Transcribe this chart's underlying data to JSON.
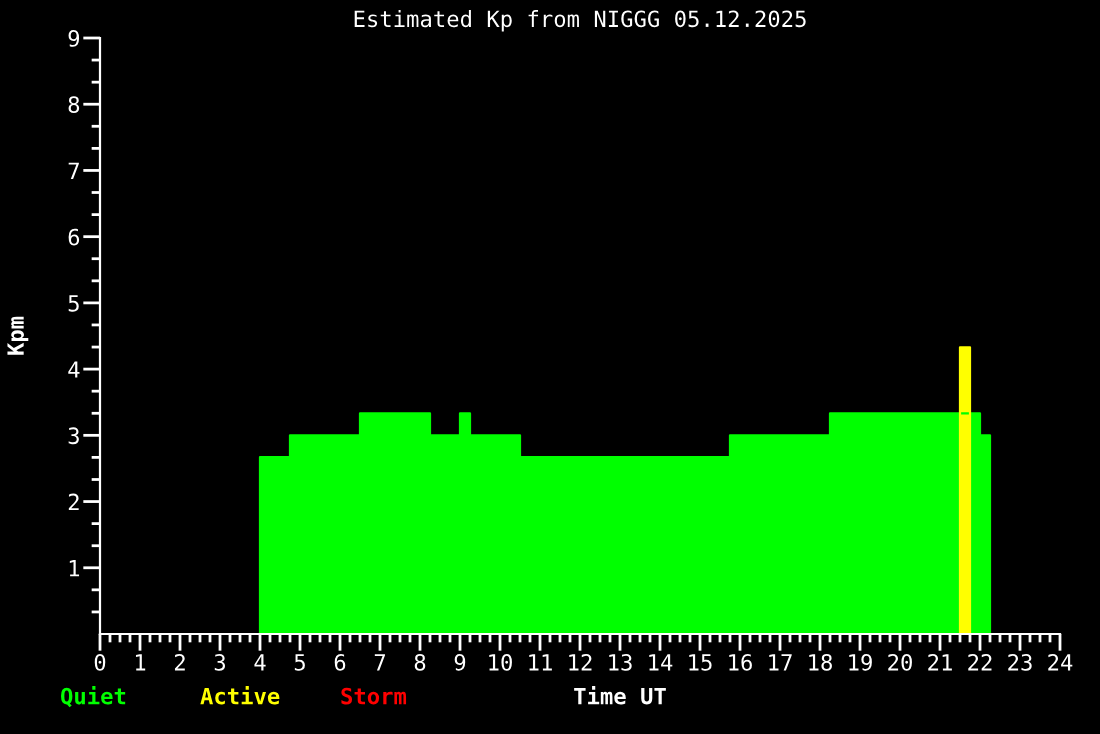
{
  "chart_data": {
    "type": "area",
    "title": "Estimated Kp from NIGGG 05.12.2025",
    "xlabel": "Time UT",
    "ylabel": "Kpm",
    "series": [
      {
        "name": "Quiet",
        "color": "#00ff00",
        "x": [
          4,
          4,
          4.75,
          4.75,
          6.5,
          6.5,
          8.25,
          8.25,
          9,
          9,
          9.25,
          9.25,
          10.5,
          10.5,
          15.75,
          15.75,
          18.25,
          18.25,
          22,
          22,
          22.25,
          22.25
        ],
        "values": [
          0,
          2.67,
          2.67,
          3,
          3,
          3.33,
          3.33,
          3,
          3,
          3.33,
          3.33,
          3,
          3,
          2.67,
          2.67,
          3,
          3,
          3.33,
          3.33,
          3,
          3,
          0
        ]
      },
      {
        "name": "Active",
        "color": "#ffff00",
        "x": [
          21.5,
          21.5,
          21.75,
          21.75
        ],
        "values": [
          0,
          4.33,
          4.33,
          0
        ]
      },
      {
        "name": "Storm",
        "color": "#ff0000"
      }
    ],
    "xlim": [
      0,
      24
    ],
    "ylim": [
      0,
      9
    ],
    "xticks": [
      0,
      {
        "value": 0.25,
        "label": null
      },
      {
        "value": 0.5,
        "label": null
      },
      {
        "value": 0.75,
        "label": null
      },
      1,
      {
        "value": 1.25,
        "label": null
      },
      {
        "value": 1.5,
        "label": null
      },
      {
        "value": 1.75,
        "label": null
      },
      2,
      {
        "value": 2.25,
        "label": null
      },
      {
        "value": 2.5,
        "label": null
      },
      {
        "value": 2.75,
        "label": null
      },
      3,
      {
        "value": 3.25,
        "label": null
      },
      {
        "value": 3.5,
        "label": null
      },
      {
        "value": 3.75,
        "label": null
      },
      4,
      {
        "value": 4.25,
        "label": null
      },
      {
        "value": 4.5,
        "label": null
      },
      {
        "value": 4.75,
        "label": null
      },
      5,
      {
        "value": 5.25,
        "label": null
      },
      {
        "value": 5.5,
        "label": null
      },
      {
        "value": 5.75,
        "label": null
      },
      6,
      {
        "value": 6.25,
        "label": null
      },
      {
        "value": 6.5,
        "label": null
      },
      {
        "value": 6.75,
        "label": null
      },
      7,
      {
        "value": 7.25,
        "label": null
      },
      {
        "value": 7.5,
        "label": null
      },
      {
        "value": 7.75,
        "label": null
      },
      8,
      {
        "value": 8.25,
        "label": null
      },
      {
        "value": 8.5,
        "label": null
      },
      {
        "value": 8.75,
        "label": null
      },
      9,
      {
        "value": 9.25,
        "label": null
      },
      {
        "value": 9.5,
        "label": null
      },
      {
        "value": 9.75,
        "label": null
      },
      10,
      {
        "value": 10.25,
        "label": null
      },
      {
        "value": 10.5,
        "label": null
      },
      {
        "value": 10.75,
        "label": null
      },
      11,
      {
        "value": 11.25,
        "label": null
      },
      {
        "value": 11.5,
        "label": null
      },
      {
        "value": 11.75,
        "label": null
      },
      12,
      {
        "value": 12.25,
        "label": null
      },
      {
        "value": 12.5,
        "label": null
      },
      {
        "value": 12.75,
        "label": null
      },
      13,
      {
        "value": 13.25,
        "label": null
      },
      {
        "value": 13.5,
        "label": null
      },
      {
        "value": 13.75,
        "label": null
      },
      14,
      {
        "value": 14.25,
        "label": null
      },
      {
        "value": 14.5,
        "label": null
      },
      {
        "value": 14.75,
        "label": null
      },
      15,
      {
        "value": 15.25,
        "label": null
      },
      {
        "value": 15.5,
        "label": null
      },
      {
        "value": 15.75,
        "label": null
      },
      16,
      {
        "value": 16.25,
        "label": null
      },
      {
        "value": 16.5,
        "label": null
      },
      {
        "value": 16.75,
        "label": null
      },
      17,
      {
        "value": 17.25,
        "label": null
      },
      {
        "value": 17.5,
        "label": null
      },
      {
        "value": 17.75,
        "label": null
      },
      18,
      {
        "value": 18.25,
        "label": null
      },
      {
        "value": 18.5,
        "label": null
      },
      {
        "value": 18.75,
        "label": null
      },
      19,
      {
        "value": 19.25,
        "label": null
      },
      {
        "value": 19.5,
        "label": null
      },
      {
        "value": 19.75,
        "label": null
      },
      20,
      {
        "value": 20.25,
        "label": null
      },
      {
        "value": 20.5,
        "label": null
      },
      {
        "value": 20.75,
        "label": null
      },
      21,
      {
        "value": 21.25,
        "label": null
      },
      {
        "value": 21.5,
        "label": null
      },
      {
        "value": 21.75,
        "label": null
      },
      22,
      {
        "value": 22.25,
        "label": null
      },
      {
        "value": 22.5,
        "label": null
      },
      {
        "value": 22.75,
        "label": null
      },
      23,
      {
        "value": 23.25,
        "label": null
      },
      {
        "value": 23.5,
        "label": null
      },
      {
        "value": 23.75,
        "label": null
      },
      24
    ],
    "yticks": [
      {
        "value": 0.333,
        "label": null
      },
      {
        "value": 0.667,
        "label": null
      },
      1,
      {
        "value": 1.333,
        "label": null
      },
      {
        "value": 1.667,
        "label": null
      },
      2,
      {
        "value": 2.333,
        "label": null
      },
      {
        "value": 2.667,
        "label": null
      },
      3,
      {
        "value": 3.333,
        "label": null
      },
      {
        "value": 3.667,
        "label": null
      },
      4,
      {
        "value": 4.333,
        "label": null
      },
      {
        "value": 4.667,
        "label": null
      },
      5,
      {
        "value": 5.333,
        "label": null
      },
      {
        "value": 5.667,
        "label": null
      },
      6,
      {
        "value": 6.333,
        "label": null
      },
      {
        "value": 6.667,
        "label": null
      },
      7,
      {
        "value": 7.333,
        "label": null
      },
      {
        "value": 7.667,
        "label": null
      },
      8,
      {
        "value": 8.333,
        "label": null
      },
      {
        "value": 8.667,
        "label": null
      },
      9
    ],
    "grid": false
  }
}
